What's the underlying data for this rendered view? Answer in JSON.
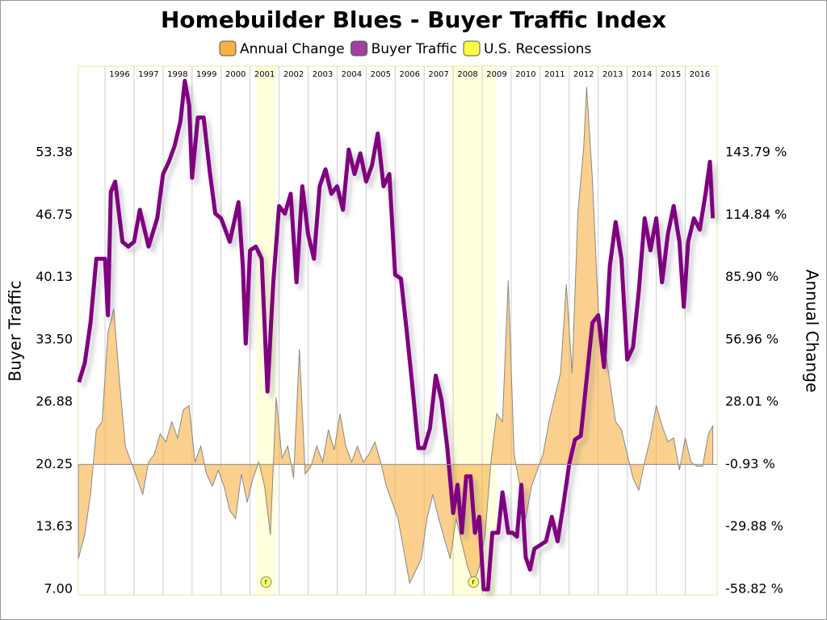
{
  "chart_data": {
    "type": "dual-axis-area-line",
    "title": "Homebuilder Blues - Buyer Traffic Index",
    "y_label": "Buyer Traffic",
    "y2_label": "Annual Change",
    "xlim": [
      1995.08,
      2017.1
    ],
    "xticks": [
      1996,
      1997,
      1998,
      1999,
      2000,
      2001,
      2002,
      2003,
      2004,
      2005,
      2006,
      2007,
      2008,
      2009,
      2010,
      2011,
      2012,
      2013,
      2014,
      2015,
      2016
    ],
    "ylim": [
      6.4,
      62.55
    ],
    "yticks": [
      {
        "value": 7,
        "label": "7.00"
      },
      13.63,
      20.25,
      26.88,
      {
        "value": 33.5,
        "label": "33.50"
      },
      40.13,
      46.75,
      53.38
    ],
    "y2lim": [
      -61.44,
      183.85
    ],
    "y2ticks": [
      {
        "value": -58.82,
        "label": "-58.82 %"
      },
      {
        "value": -29.88,
        "label": "-29.88 %"
      },
      {
        "value": -0.93,
        "label": "-0.93 %"
      },
      {
        "value": 28.01,
        "label": "28.01 %"
      },
      {
        "value": 56.96,
        "label": "56.96 %"
      },
      {
        "value": 85.9,
        "label": "85.90 %"
      },
      {
        "value": 114.84,
        "label": "114.84 %"
      },
      {
        "value": 143.79,
        "label": "143.79 %"
      }
    ],
    "recessions": {
      "name": "U.S. Recessions",
      "color": "#ffff44",
      "marker": "r",
      "periods": [
        [
          2001.2,
          2001.9
        ],
        [
          2007.9,
          2009.5
        ]
      ]
    },
    "series": [
      {
        "name": "Annual Change",
        "color": "#f9b042",
        "axis": "y2",
        "kind": "area",
        "x": [
          1995.08,
          1995.3,
          1995.5,
          1995.7,
          1995.9,
          1996.1,
          1996.3,
          1996.5,
          1996.7,
          1996.9,
          1997.1,
          1997.3,
          1997.5,
          1997.7,
          1997.9,
          1998.1,
          1998.3,
          1998.5,
          1998.7,
          1998.9,
          1999.1,
          1999.3,
          1999.5,
          1999.7,
          1999.9,
          2000.1,
          2000.3,
          2000.5,
          2000.7,
          2000.9,
          2001.1,
          2001.3,
          2001.5,
          2001.7,
          2001.9,
          2002.1,
          2002.3,
          2002.5,
          2002.7,
          2002.9,
          2003.1,
          2003.3,
          2003.5,
          2003.7,
          2003.9,
          2004.1,
          2004.3,
          2004.5,
          2004.7,
          2004.9,
          2005.1,
          2005.3,
          2005.5,
          2005.7,
          2005.9,
          2006.1,
          2006.3,
          2006.5,
          2006.7,
          2006.9,
          2007.1,
          2007.3,
          2007.5,
          2007.7,
          2007.9,
          2008.1,
          2008.3,
          2008.5,
          2008.7,
          2008.9,
          2009.1,
          2009.3,
          2009.5,
          2009.7,
          2009.9,
          2010.1,
          2010.3,
          2010.5,
          2010.7,
          2010.9,
          2011.1,
          2011.3,
          2011.5,
          2011.7,
          2011.9,
          2012.1,
          2012.3,
          2012.5,
          2012.6,
          2012.8,
          2013.0,
          2013.2,
          2013.4,
          2013.6,
          2013.8,
          2014.0,
          2014.2,
          2014.4,
          2014.6,
          2014.8,
          2015.0,
          2015.2,
          2015.4,
          2015.6,
          2015.8,
          2016.0,
          2016.2,
          2016.4,
          2016.6,
          2016.8,
          2016.95
        ],
        "values": [
          -44.7,
          -33.5,
          -14.8,
          15.2,
          18.9,
          60.1,
          71.3,
          37.6,
          7.6,
          0.2,
          -7.3,
          -14.8,
          0.2,
          3.9,
          13.3,
          9.6,
          18.9,
          11.4,
          24.5,
          26.4,
          0.2,
          7.6,
          -5.4,
          -11.0,
          -3.6,
          -11.0,
          -22.3,
          -26.0,
          -5.4,
          -18.5,
          -7.3,
          0.2,
          -11.0,
          -33.5,
          30.2,
          2.1,
          7.6,
          -7.3,
          52.6,
          -5.4,
          -1.7,
          7.6,
          0.2,
          15.2,
          5.8,
          22.7,
          7.6,
          0.2,
          7.6,
          0.2,
          3.9,
          9.6,
          0.2,
          -11.0,
          -18.5,
          -26.0,
          -41.0,
          -56.0,
          -50.4,
          -44.7,
          -26.0,
          -14.8,
          -26.0,
          -35.4,
          -44.7,
          -26.0,
          -37.3,
          -48.5,
          -56.0,
          -48.5,
          -33.5,
          0.2,
          22.7,
          18.9,
          84.5,
          3.9,
          -11.0,
          -26.0,
          -11.0,
          -3.6,
          3.9,
          18.9,
          30.2,
          41.4,
          82.6,
          41.4,
          116.3,
          146.2,
          174.3,
          131.3,
          71.3,
          56.4,
          37.6,
          18.9,
          15.2,
          3.9,
          -7.3,
          -12.9,
          0.2,
          11.4,
          26.4,
          17.1,
          9.6,
          11.4,
          -3.6,
          11.4,
          0.2,
          -1.7,
          -1.7,
          13.3,
          17.1
        ]
      },
      {
        "name": "Buyer Traffic",
        "color": "#800080",
        "axis": "y",
        "kind": "line",
        "x": [
          1995.1,
          1995.3,
          1995.5,
          1995.7,
          1996.0,
          1996.1,
          1996.2,
          1996.35,
          1996.6,
          1996.8,
          1997.0,
          1997.2,
          1997.5,
          1997.8,
          1998.0,
          1998.2,
          1998.4,
          1998.6,
          1998.75,
          1998.9,
          1999.0,
          1999.2,
          1999.4,
          1999.6,
          1999.8,
          2000.0,
          2000.3,
          2000.6,
          2000.75,
          2000.85,
          2001.0,
          2001.2,
          2001.4,
          2001.6,
          2001.8,
          2002.0,
          2002.2,
          2002.4,
          2002.6,
          2002.8,
          2003.0,
          2003.2,
          2003.4,
          2003.6,
          2003.8,
          2004.0,
          2004.2,
          2004.4,
          2004.6,
          2004.8,
          2005.0,
          2005.2,
          2005.4,
          2005.6,
          2005.8,
          2006.0,
          2006.2,
          2006.4,
          2006.6,
          2006.8,
          2007.0,
          2007.2,
          2007.4,
          2007.6,
          2007.8,
          2008.0,
          2008.15,
          2008.3,
          2008.45,
          2008.6,
          2008.75,
          2008.9,
          2009.05,
          2009.2,
          2009.35,
          2009.55,
          2009.7,
          2009.9,
          2010.05,
          2010.2,
          2010.35,
          2010.5,
          2010.65,
          2010.8,
          2011.0,
          2011.2,
          2011.4,
          2011.6,
          2011.8,
          2012.0,
          2012.2,
          2012.4,
          2012.6,
          2012.8,
          2013.0,
          2013.2,
          2013.4,
          2013.6,
          2013.8,
          2014.0,
          2014.2,
          2014.4,
          2014.6,
          2014.8,
          2015.0,
          2015.2,
          2015.4,
          2015.6,
          2015.8,
          2015.95,
          2016.1,
          2016.3,
          2016.5,
          2016.7,
          2016.85,
          2016.95
        ],
        "values": [
          29.0,
          31.0,
          35.3,
          42.1,
          42.1,
          36.1,
          49.2,
          50.3,
          43.9,
          43.4,
          43.9,
          47.3,
          43.4,
          46.4,
          51.1,
          52.4,
          54.1,
          56.7,
          61.0,
          58.4,
          50.7,
          57.1,
          57.1,
          51.6,
          46.9,
          46.4,
          43.9,
          48.1,
          41.3,
          33.1,
          43.0,
          43.4,
          42.1,
          28.0,
          39.6,
          47.7,
          46.9,
          49.0,
          39.6,
          49.8,
          44.7,
          42.1,
          49.8,
          51.6,
          49.0,
          49.8,
          47.3,
          53.7,
          51.1,
          53.3,
          50.3,
          52.0,
          55.4,
          49.8,
          51.1,
          40.4,
          40.0,
          34.4,
          28.4,
          22.0,
          22.0,
          24.1,
          29.7,
          27.1,
          22.0,
          15.1,
          18.1,
          13.0,
          19.0,
          19.0,
          13.0,
          14.7,
          7.0,
          7.0,
          13.0,
          13.0,
          17.3,
          13.0,
          13.0,
          12.6,
          18.1,
          10.4,
          9.1,
          11.3,
          11.7,
          12.1,
          14.7,
          12.1,
          16.0,
          20.3,
          22.9,
          23.3,
          29.3,
          35.3,
          36.1,
          30.6,
          41.3,
          46.0,
          42.1,
          31.4,
          32.7,
          38.7,
          46.4,
          43.0,
          46.4,
          39.6,
          44.7,
          47.7,
          43.9,
          37.0,
          43.9,
          46.4,
          45.2,
          49.0,
          52.4,
          46.4
        ]
      }
    ]
  }
}
